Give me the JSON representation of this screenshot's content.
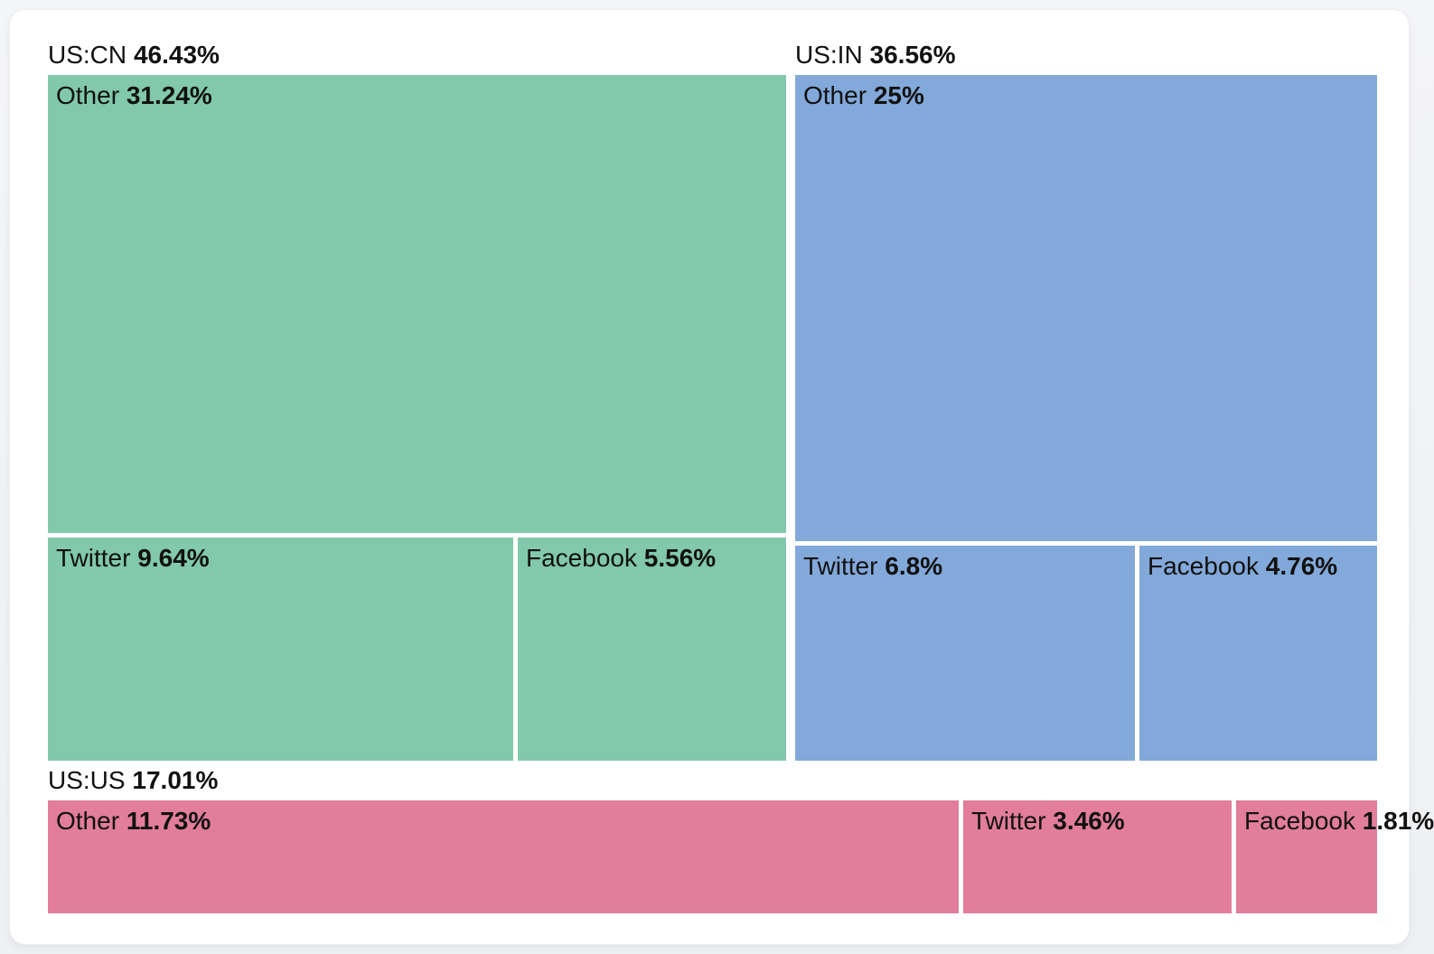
{
  "chart_data": {
    "type": "treemap",
    "title": "",
    "legend": "none",
    "grid": "off",
    "text_color": "#111111",
    "layout_rows": [
      [
        "US:CN",
        "US:IN"
      ],
      [
        "US:US"
      ]
    ],
    "groups": [
      {
        "label": "US:CN",
        "pct": "46.43%",
        "value": 46.43,
        "color": "#82c8ab",
        "children": [
          {
            "label": "Other",
            "pct": "31.24%",
            "value": 31.24
          },
          {
            "label": "Twitter",
            "pct": "9.64%",
            "value": 9.64
          },
          {
            "label": "Facebook",
            "pct": "5.56%",
            "value": 5.56
          }
        ]
      },
      {
        "label": "US:IN",
        "pct": "36.56%",
        "value": 36.56,
        "color": "#82a9d9",
        "children": [
          {
            "label": "Other",
            "pct": "25%",
            "value": 25
          },
          {
            "label": "Twitter",
            "pct": "6.8%",
            "value": 6.8
          },
          {
            "label": "Facebook",
            "pct": "4.76%",
            "value": 4.76
          }
        ]
      },
      {
        "label": "US:US",
        "pct": "17.01%",
        "value": 17.01,
        "color": "#e27d9c",
        "children": [
          {
            "label": "Other",
            "pct": "11.73%",
            "value": 11.73
          },
          {
            "label": "Twitter",
            "pct": "3.46%",
            "value": 3.46
          },
          {
            "label": "Facebook",
            "pct": "1.81%",
            "value": 1.81
          }
        ]
      }
    ]
  }
}
